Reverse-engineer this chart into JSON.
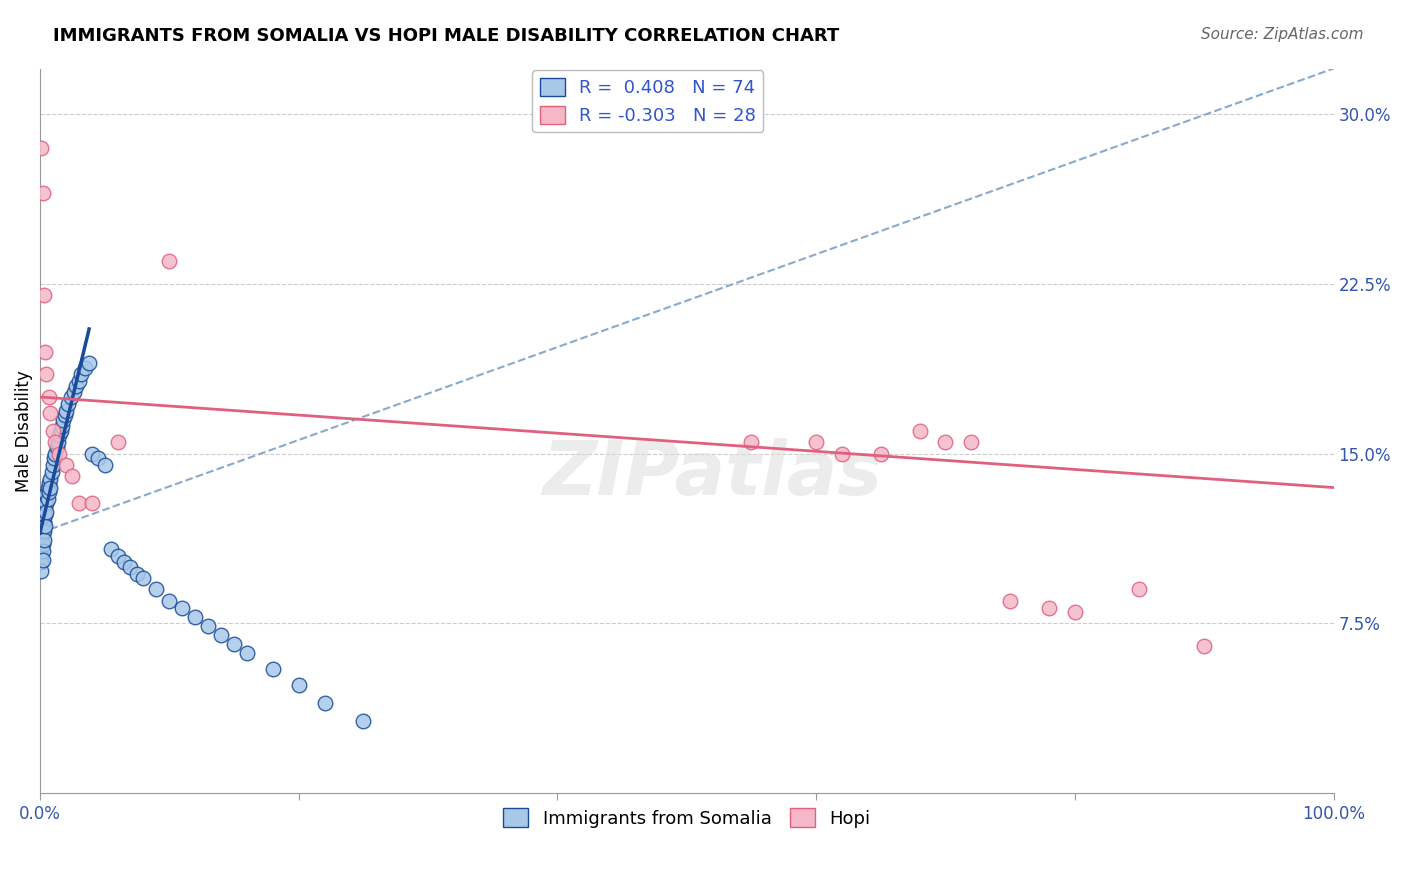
{
  "title": "IMMIGRANTS FROM SOMALIA VS HOPI MALE DISABILITY CORRELATION CHART",
  "source": "Source: ZipAtlas.com",
  "ylabel": "Male Disability",
  "xlim": [
    0.0,
    1.0
  ],
  "ylim": [
    0.0,
    0.32
  ],
  "blue_R": 0.408,
  "blue_N": 74,
  "pink_R": -0.303,
  "pink_N": 28,
  "blue_color": "#a8c8e8",
  "pink_color": "#f4b8c8",
  "blue_line_color": "#1a4a9a",
  "pink_line_color": "#e06080",
  "dashed_line_color": "#88aacc",
  "watermark": "ZIPatlas",
  "blue_x": [
    0.0005,
    0.001,
    0.001,
    0.001,
    0.001,
    0.001,
    0.001,
    0.001,
    0.002,
    0.002,
    0.002,
    0.002,
    0.002,
    0.002,
    0.002,
    0.003,
    0.003,
    0.003,
    0.003,
    0.003,
    0.004,
    0.004,
    0.004,
    0.004,
    0.005,
    0.005,
    0.005,
    0.006,
    0.006,
    0.007,
    0.007,
    0.008,
    0.008,
    0.009,
    0.01,
    0.011,
    0.012,
    0.013,
    0.014,
    0.015,
    0.016,
    0.017,
    0.018,
    0.019,
    0.02,
    0.022,
    0.024,
    0.026,
    0.028,
    0.03,
    0.032,
    0.035,
    0.038,
    0.04,
    0.045,
    0.05,
    0.055,
    0.06,
    0.065,
    0.07,
    0.075,
    0.08,
    0.09,
    0.1,
    0.11,
    0.12,
    0.13,
    0.14,
    0.15,
    0.16,
    0.18,
    0.2,
    0.22,
    0.25
  ],
  "blue_y": [
    0.115,
    0.12,
    0.118,
    0.112,
    0.108,
    0.105,
    0.102,
    0.098,
    0.125,
    0.122,
    0.118,
    0.115,
    0.11,
    0.107,
    0.103,
    0.128,
    0.124,
    0.12,
    0.116,
    0.112,
    0.13,
    0.127,
    0.123,
    0.118,
    0.132,
    0.128,
    0.124,
    0.135,
    0.13,
    0.137,
    0.133,
    0.139,
    0.135,
    0.142,
    0.145,
    0.148,
    0.15,
    0.153,
    0.155,
    0.158,
    0.16,
    0.162,
    0.165,
    0.167,
    0.169,
    0.172,
    0.175,
    0.177,
    0.18,
    0.182,
    0.185,
    0.188,
    0.19,
    0.15,
    0.148,
    0.145,
    0.108,
    0.105,
    0.102,
    0.1,
    0.097,
    0.095,
    0.09,
    0.085,
    0.082,
    0.078,
    0.074,
    0.07,
    0.066,
    0.062,
    0.055,
    0.048,
    0.04,
    0.032
  ],
  "pink_x": [
    0.001,
    0.002,
    0.003,
    0.004,
    0.005,
    0.007,
    0.008,
    0.01,
    0.012,
    0.015,
    0.02,
    0.025,
    0.03,
    0.04,
    0.06,
    0.1,
    0.55,
    0.6,
    0.62,
    0.65,
    0.68,
    0.7,
    0.72,
    0.75,
    0.78,
    0.8,
    0.85,
    0.9
  ],
  "pink_y": [
    0.285,
    0.265,
    0.22,
    0.195,
    0.185,
    0.175,
    0.168,
    0.16,
    0.155,
    0.15,
    0.145,
    0.14,
    0.128,
    0.128,
    0.155,
    0.235,
    0.155,
    0.155,
    0.15,
    0.15,
    0.16,
    0.155,
    0.155,
    0.085,
    0.082,
    0.08,
    0.09,
    0.065
  ],
  "blue_line_x0": 0.0,
  "blue_line_x1": 0.038,
  "blue_line_y0": 0.115,
  "blue_line_y1": 0.205,
  "dashed_line_x0": 0.0,
  "dashed_line_x1": 1.0,
  "dashed_line_y0": 0.115,
  "dashed_line_y1": 0.32,
  "pink_line_x0": 0.0,
  "pink_line_x1": 1.0,
  "pink_line_y0": 0.175,
  "pink_line_y1": 0.135
}
